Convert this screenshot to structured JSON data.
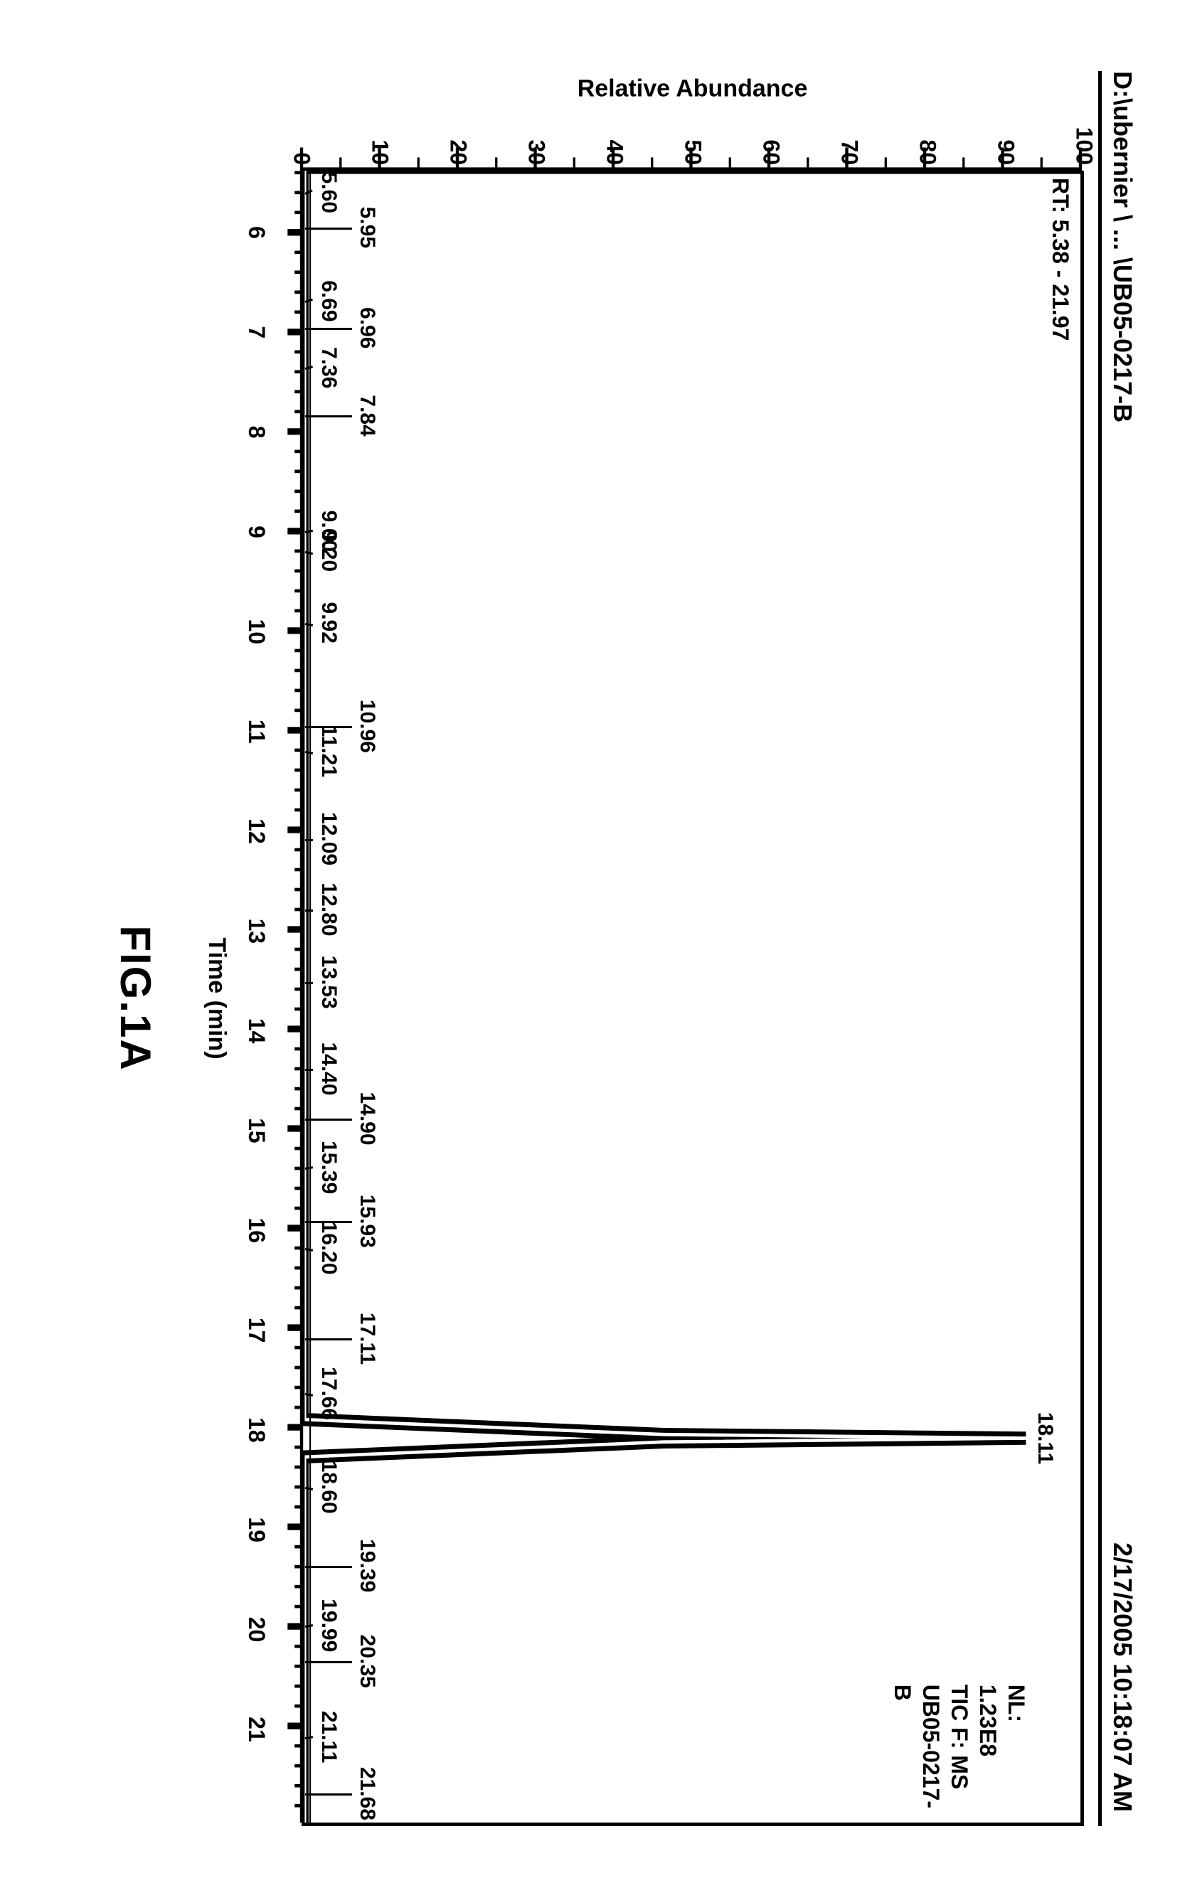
{
  "header": {
    "filepath": "D:\\ubernier \\ ... \\UB05-0217-B",
    "timestamp": "2/17/2005 10:18:07 AM"
  },
  "chart": {
    "type": "chromatogram",
    "rt_range_label": "RT: 5.38 - 21.97",
    "legend": {
      "line1": "NL:",
      "line2": "1.23E8",
      "line3": "TIC F:   MS",
      "line4": "UB05-0217-",
      "line5": "B"
    },
    "ylabel": "Relative Abundance",
    "xlabel": "Time (min)",
    "xlim": [
      5.38,
      21.97
    ],
    "ylim": [
      0,
      100
    ],
    "yticks": [
      0,
      10,
      20,
      30,
      40,
      50,
      60,
      70,
      80,
      90,
      100
    ],
    "xticks": [
      6,
      7,
      8,
      9,
      10,
      11,
      12,
      13,
      14,
      15,
      16,
      17,
      18,
      19,
      20,
      21
    ],
    "background_color": "#ffffff",
    "line_color": "#000000",
    "line_width": 4,
    "baseline_y": 0.5,
    "main_peak": {
      "x": 18.11,
      "height": 93,
      "width": 0.25,
      "label": "18.11",
      "label_row": 0
    },
    "peaks_row1": [
      {
        "x": 5.95,
        "label": "5.95"
      },
      {
        "x": 6.96,
        "label": "6.96"
      },
      {
        "x": 7.84,
        "label": "7.84"
      },
      {
        "x": 10.96,
        "label": "10.96"
      },
      {
        "x": 14.9,
        "label": "14.90"
      },
      {
        "x": 15.93,
        "label": "15.93"
      },
      {
        "x": 17.11,
        "label": "17.11"
      },
      {
        "x": 19.39,
        "label": "19.39"
      },
      {
        "x": 20.35,
        "label": "20.35"
      },
      {
        "x": 21.68,
        "label": "21.68"
      }
    ],
    "peaks_row2_left": [
      {
        "x": 5.6,
        "label": "5.60",
        "angle": -25
      },
      {
        "x": 6.69,
        "label": "6.69",
        "angle": -18
      },
      {
        "x": 7.36,
        "label": "7.36",
        "angle": -15
      },
      {
        "x": 9.0,
        "label": "9.00",
        "angle": -12
      }
    ],
    "peaks_row2_right": [
      {
        "x": 9.2,
        "label": "9.20",
        "angle": 12
      },
      {
        "x": 9.92,
        "label": "9.92",
        "angle": 10
      },
      {
        "x": 11.21,
        "label": "11.21",
        "angle": 10
      },
      {
        "x": 12.09,
        "label": "12.09",
        "angle": 0
      },
      {
        "x": 12.8,
        "label": "12.80",
        "angle": 0
      },
      {
        "x": 13.53,
        "label": "13.53",
        "angle": 0
      },
      {
        "x": 14.4,
        "label": "14.40",
        "angle": 0
      },
      {
        "x": 15.39,
        "label": "15.39",
        "angle": -10
      },
      {
        "x": 16.2,
        "label": "16.20",
        "angle": 10
      },
      {
        "x": 17.66,
        "label": "17.66",
        "angle": 10
      },
      {
        "x": 18.6,
        "label": "18.60",
        "angle": 10
      },
      {
        "x": 19.99,
        "label": "19.99",
        "angle": -10
      },
      {
        "x": 21.11,
        "label": "21.11",
        "angle": -10
      }
    ],
    "row1_y": 10,
    "row2_y": 5
  },
  "caption": "FIG.1A"
}
